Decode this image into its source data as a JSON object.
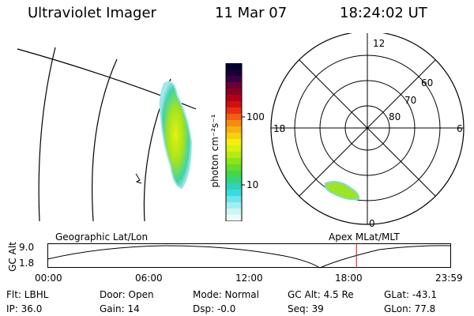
{
  "header": {
    "title": "Ultraviolet Imager",
    "date": "11 Mar 07",
    "time": "18:24:02 UT"
  },
  "colorbar": {
    "unit_label": "photon cm⁻²s⁻¹",
    "tick_labels": [
      "100",
      "10"
    ],
    "colors": [
      "#000033",
      "#1a0033",
      "#3a0044",
      "#6a0033",
      "#8a0020",
      "#b00018",
      "#d01010",
      "#e83010",
      "#f06010",
      "#f48c10",
      "#f6b010",
      "#f6d010",
      "#f2f010",
      "#d6f010",
      "#b4ec10",
      "#8ce41a",
      "#66dc2a",
      "#44d648",
      "#34d284",
      "#30d2ba",
      "#38dce0",
      "#6ce6ea",
      "#a2eef0",
      "#d0f4f6",
      "#eefafa"
    ]
  },
  "polar_plot": {
    "mlt_labels": {
      "top": "12",
      "left": "18",
      "right": "6",
      "bottom": "0"
    },
    "lat_labels": [
      "60",
      "70",
      "80"
    ]
  },
  "timeline": {
    "axis_label": "GC Alt",
    "y_ticks": [
      "9.0",
      "1.8"
    ],
    "left_caption": "Geographic Lat/Lon",
    "right_caption": "Apex MLat/MLT",
    "x_ticks": [
      "00:00",
      "06:00",
      "12:00",
      "18:00",
      "23:59"
    ],
    "current_fraction": 0.767
  },
  "status": {
    "flt": "Flt: LBHL",
    "ip": "IP: 36.0",
    "door": "Door: Open",
    "gain": "Gain: 14",
    "mode": "Mode: Normal",
    "dsp": "Dsp:  -0.0",
    "gc_alt": "GC Alt: 4.5 Re",
    "seq": "Seq: 39",
    "glat": "GLat: -43.1",
    "glon": "GLon:  77.8"
  }
}
